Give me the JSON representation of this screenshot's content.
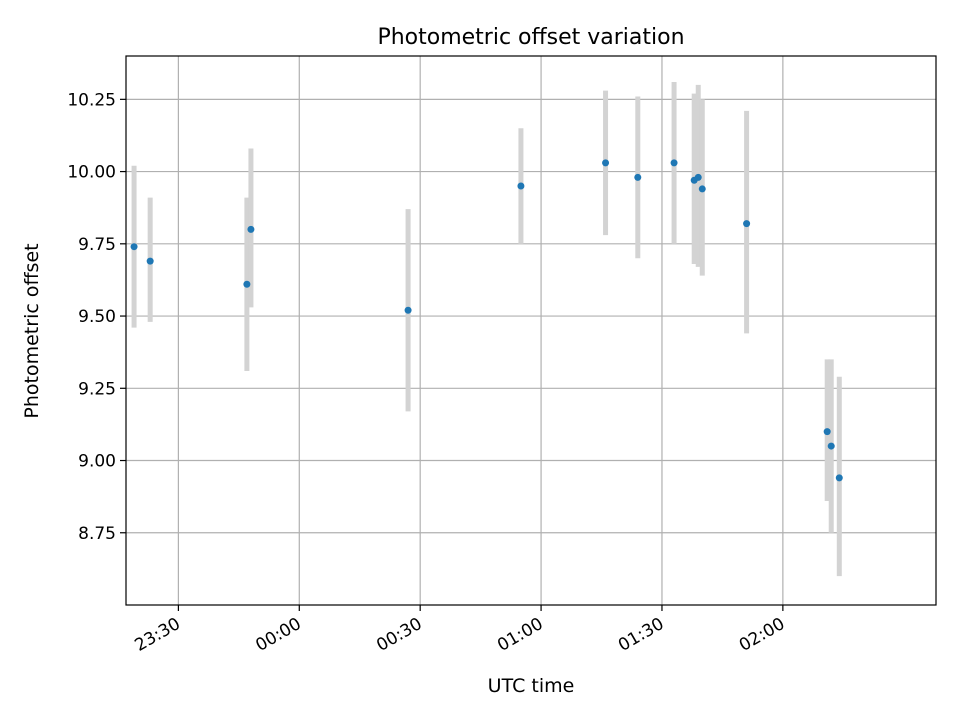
{
  "chart_data": {
    "type": "scatter",
    "title": "Photometric offset variation",
    "xlabel": "UTC time",
    "ylabel": "Photometric offset",
    "x_unit": "UTC clock time (HH:MM)",
    "xlim": [
      "23:17",
      "02:38"
    ],
    "ylim": [
      8.5,
      10.4
    ],
    "grid": true,
    "point_color": "#1f77b4",
    "errorbar_color": "#d3d3d3",
    "x_ticks": [
      "23:30",
      "00:00",
      "00:30",
      "01:00",
      "01:30",
      "02:00"
    ],
    "y_ticks": [
      "8.75",
      "9.00",
      "9.25",
      "9.50",
      "9.75",
      "10.00",
      "10.25"
    ],
    "points": [
      {
        "time": "23:19",
        "y": 9.74,
        "err_low": 9.46,
        "err_high": 10.02
      },
      {
        "time": "23:23",
        "y": 9.69,
        "err_low": 9.48,
        "err_high": 9.91
      },
      {
        "time": "23:47",
        "y": 9.61,
        "err_low": 9.31,
        "err_high": 9.91
      },
      {
        "time": "23:48",
        "y": 9.8,
        "err_low": 9.53,
        "err_high": 10.08
      },
      {
        "time": "00:27",
        "y": 9.52,
        "err_low": 9.17,
        "err_high": 9.87
      },
      {
        "time": "00:55",
        "y": 9.95,
        "err_low": 9.75,
        "err_high": 10.15
      },
      {
        "time": "01:16",
        "y": 10.03,
        "err_low": 9.78,
        "err_high": 10.28
      },
      {
        "time": "01:24",
        "y": 9.98,
        "err_low": 9.7,
        "err_high": 10.26
      },
      {
        "time": "01:33",
        "y": 10.03,
        "err_low": 9.75,
        "err_high": 10.31
      },
      {
        "time": "01:38",
        "y": 9.97,
        "err_low": 9.68,
        "err_high": 10.27
      },
      {
        "time": "01:39",
        "y": 9.98,
        "err_low": 9.67,
        "err_high": 10.3
      },
      {
        "time": "01:40",
        "y": 9.94,
        "err_low": 9.64,
        "err_high": 10.25
      },
      {
        "time": "01:51",
        "y": 9.82,
        "err_low": 9.44,
        "err_high": 10.21
      },
      {
        "time": "02:11",
        "y": 9.1,
        "err_low": 8.86,
        "err_high": 9.35
      },
      {
        "time": "02:12",
        "y": 9.05,
        "err_low": 8.75,
        "err_high": 9.35
      },
      {
        "time": "02:14",
        "y": 8.94,
        "err_low": 8.6,
        "err_high": 9.29
      }
    ]
  }
}
